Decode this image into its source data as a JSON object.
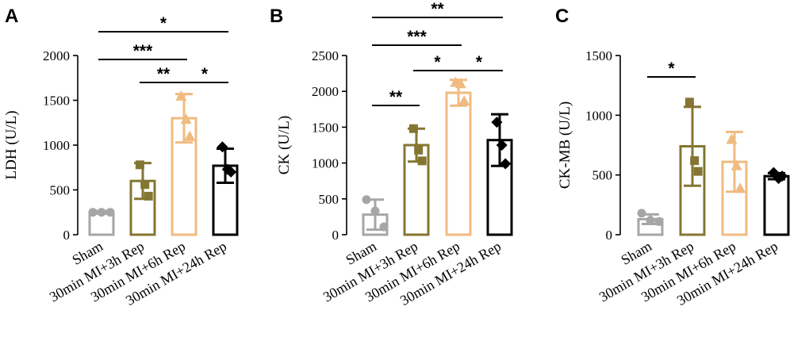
{
  "chart_data": [
    {
      "type": "bar",
      "panel": "A",
      "ylabel": "LDH (U/L)",
      "ylim": [
        0,
        2000
      ],
      "yticks": [
        "0",
        "500",
        "1000",
        "1500",
        "2000"
      ],
      "categories": [
        "Sham",
        "30min MI+3h Rep",
        "30min MI+6h Rep",
        "30min MI+24h Rep"
      ],
      "values": [
        250,
        600,
        1300,
        770
      ],
      "errors": [
        15,
        200,
        270,
        190
      ],
      "colors": [
        "#a6a6a6",
        "#847632",
        "#f0bb80",
        "#000000"
      ],
      "markers": [
        "circle",
        "square",
        "triangle",
        "diamond"
      ],
      "points": [
        [
          250,
          250,
          250
        ],
        [
          780,
          560,
          430
        ],
        [
          1550,
          1290,
          1100
        ],
        [
          980,
          730,
          700
        ]
      ],
      "significance": [
        {
          "from": 0,
          "to": 3,
          "label": "*"
        },
        {
          "from": 0,
          "to": 2,
          "label": "***"
        },
        {
          "from": 1,
          "to": 2,
          "label": "**"
        },
        {
          "from": 2,
          "to": 3,
          "label": "*"
        }
      ]
    },
    {
      "type": "bar",
      "panel": "B",
      "ylabel": "CK (U/L)",
      "ylim": [
        0,
        2500
      ],
      "yticks": [
        "0",
        "500",
        "1000",
        "1500",
        "2000",
        "2500"
      ],
      "categories": [
        "Sham",
        "30min MI+3h Rep",
        "30min MI+6h Rep",
        "30min MI+24h Rep"
      ],
      "values": [
        280,
        1250,
        1980,
        1320
      ],
      "errors": [
        210,
        230,
        180,
        360
      ],
      "colors": [
        "#a6a6a6",
        "#847632",
        "#f0bb80",
        "#000000"
      ],
      "markers": [
        "circle",
        "square",
        "triangle",
        "diamond"
      ],
      "points": [
        [
          490,
          330,
          110
        ],
        [
          1480,
          1180,
          1030
        ],
        [
          2130,
          2110,
          1870
        ],
        [
          1570,
          1250,
          990
        ]
      ],
      "significance": [
        {
          "from": 0,
          "to": 3,
          "label": "**"
        },
        {
          "from": 0,
          "to": 2,
          "label": "***"
        },
        {
          "from": 1,
          "to": 2,
          "label": "*"
        },
        {
          "from": 2,
          "to": 3,
          "label": "*"
        },
        {
          "from": 0,
          "to": 1,
          "label": "**"
        }
      ]
    },
    {
      "type": "bar",
      "panel": "C",
      "ylabel": "CK-MB (U/L)",
      "ylim": [
        0,
        1500
      ],
      "yticks": [
        "0",
        "500",
        "1000",
        "1500"
      ],
      "categories": [
        "Sham",
        "30min MI+3h Rep",
        "30min MI+6h Rep",
        "30min MI+24h Rep"
      ],
      "values": [
        130,
        740,
        610,
        490
      ],
      "errors": [
        40,
        330,
        250,
        25
      ],
      "colors": [
        "#a6a6a6",
        "#847632",
        "#f0bb80",
        "#000000"
      ],
      "markers": [
        "circle",
        "square",
        "triangle",
        "diamond"
      ],
      "points": [
        [
          180,
          120,
          110
        ],
        [
          1110,
          620,
          530
        ],
        [
          800,
          580,
          390
        ],
        [
          520,
          470,
          490
        ]
      ],
      "significance": [
        {
          "from": 0,
          "to": 1,
          "label": "*"
        }
      ]
    }
  ]
}
